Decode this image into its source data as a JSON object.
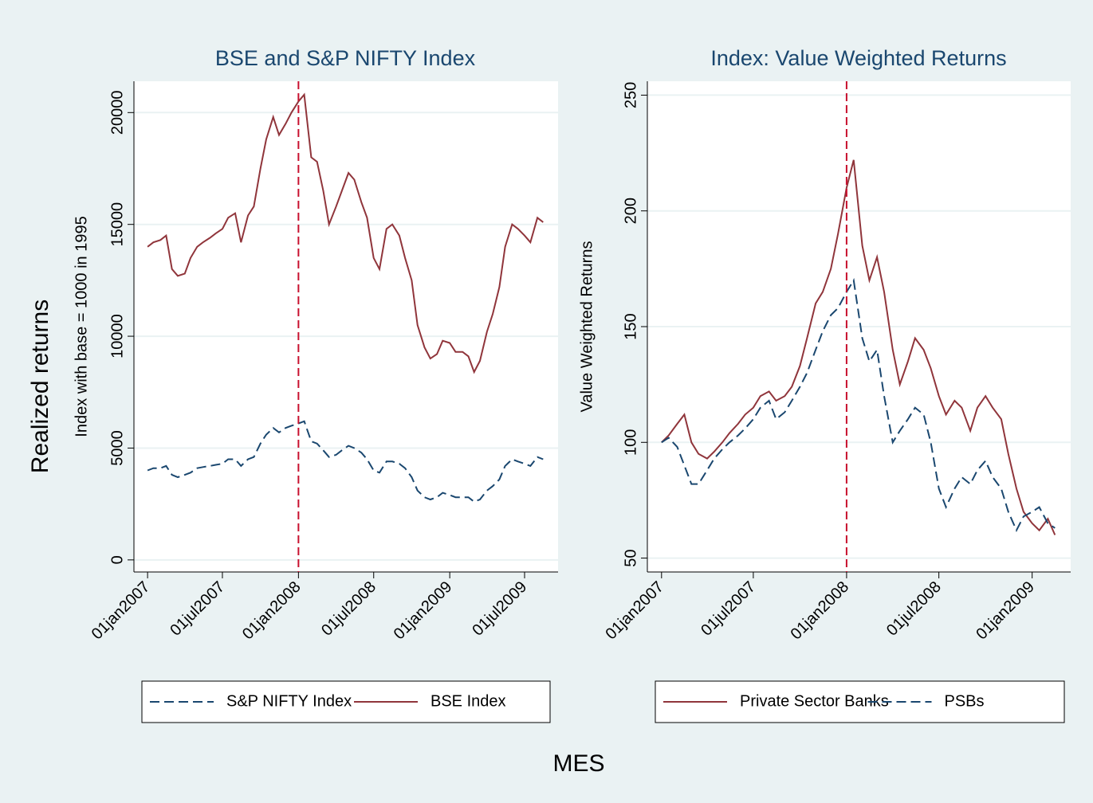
{
  "ytitle": "Realized returns",
  "xtitle": "MES",
  "chart_data": [
    {
      "type": "line",
      "title": "BSE and S&P NIFTY Index",
      "ytitle": "Index with base = 1000 in 1995",
      "x": [
        "2007-01-01",
        "2007-01-15",
        "2007-02-01",
        "2007-02-15",
        "2007-03-01",
        "2007-03-15",
        "2007-04-01",
        "2007-04-15",
        "2007-05-01",
        "2007-05-15",
        "2007-06-01",
        "2007-06-15",
        "2007-07-01",
        "2007-07-15",
        "2007-08-01",
        "2007-08-15",
        "2007-09-01",
        "2007-09-15",
        "2007-10-01",
        "2007-10-15",
        "2007-11-01",
        "2007-11-15",
        "2007-12-01",
        "2007-12-15",
        "2008-01-01",
        "2008-01-15",
        "2008-02-01",
        "2008-02-15",
        "2008-03-01",
        "2008-03-15",
        "2008-04-01",
        "2008-04-15",
        "2008-05-01",
        "2008-05-15",
        "2008-06-01",
        "2008-06-15",
        "2008-07-01",
        "2008-07-15",
        "2008-08-01",
        "2008-08-15",
        "2008-09-01",
        "2008-09-15",
        "2008-10-01",
        "2008-10-15",
        "2008-11-01",
        "2008-11-15",
        "2008-12-01",
        "2008-12-15",
        "2009-01-01",
        "2009-01-15",
        "2009-02-01",
        "2009-02-15",
        "2009-03-01",
        "2009-03-15",
        "2009-04-01",
        "2009-04-15",
        "2009-05-01",
        "2009-05-15",
        "2009-06-01",
        "2009-06-15",
        "2009-07-01",
        "2009-07-15",
        "2009-08-01",
        "2009-08-15"
      ],
      "series": [
        {
          "name": "S&P NIFTY Index",
          "color": "#1a476f",
          "dash": true,
          "values": [
            4000,
            4100,
            4100,
            4200,
            3800,
            3700,
            3800,
            3900,
            4100,
            4150,
            4200,
            4250,
            4300,
            4500,
            4500,
            4200,
            4500,
            4600,
            5200,
            5600,
            5900,
            5700,
            5900,
            6000,
            6100,
            6200,
            5300,
            5200,
            4900,
            4600,
            4700,
            4900,
            5100,
            5000,
            4800,
            4500,
            4000,
            3900,
            4400,
            4400,
            4300,
            4100,
            3700,
            3100,
            2800,
            2700,
            2800,
            3000,
            2900,
            2800,
            2800,
            2800,
            2600,
            2700,
            3100,
            3300,
            3600,
            4200,
            4500,
            4400,
            4300,
            4200,
            4600,
            4500
          ]
        },
        {
          "name": "BSE Index",
          "color": "#90353b",
          "dash": false,
          "values": [
            14000,
            14200,
            14300,
            14500,
            13000,
            12700,
            12800,
            13500,
            14000,
            14200,
            14400,
            14600,
            14800,
            15300,
            15500,
            14200,
            15400,
            15800,
            17500,
            18800,
            19800,
            19000,
            19500,
            20000,
            20500,
            20800,
            18000,
            17800,
            16500,
            15000,
            15800,
            16500,
            17300,
            17000,
            16000,
            15300,
            13500,
            13000,
            14800,
            15000,
            14500,
            13500,
            12500,
            10500,
            9500,
            9000,
            9200,
            9800,
            9700,
            9300,
            9300,
            9100,
            8400,
            8900,
            10200,
            11000,
            12200,
            14000,
            15000,
            14800,
            14500,
            14200,
            15300,
            15100
          ]
        }
      ],
      "xlim": [
        "2006-11-29",
        "2009-09-20"
      ],
      "xticks": [
        {
          "value": "2007-01-01",
          "label": "01jan2007"
        },
        {
          "value": "2007-07-01",
          "label": "01jul2007"
        },
        {
          "value": "2008-01-01",
          "label": "01jan2008"
        },
        {
          "value": "2008-07-01",
          "label": "01jul2008"
        },
        {
          "value": "2009-01-01",
          "label": "01jan2009"
        },
        {
          "value": "2009-07-01",
          "label": "01jul2009"
        }
      ],
      "ylim": [
        -540,
        21400
      ],
      "yticks": [
        0,
        5000,
        10000,
        15000,
        20000
      ],
      "grid": true,
      "vline": {
        "x": "2008-01-01",
        "color": "#c8102e"
      }
    },
    {
      "type": "line",
      "title": "Index: Value Weighted Returns",
      "ytitle": "Value Weighted Returns",
      "x": [
        "2007-01-01",
        "2007-01-15",
        "2007-02-01",
        "2007-02-15",
        "2007-03-01",
        "2007-03-15",
        "2007-04-01",
        "2007-04-15",
        "2007-05-01",
        "2007-05-15",
        "2007-06-01",
        "2007-06-15",
        "2007-07-01",
        "2007-07-15",
        "2007-08-01",
        "2007-08-15",
        "2007-09-01",
        "2007-09-15",
        "2007-10-01",
        "2007-10-15",
        "2007-11-01",
        "2007-11-15",
        "2007-12-01",
        "2007-12-15",
        "2008-01-01",
        "2008-01-15",
        "2008-02-01",
        "2008-02-15",
        "2008-03-01",
        "2008-03-15",
        "2008-04-01",
        "2008-04-15",
        "2008-05-01",
        "2008-05-15",
        "2008-06-01",
        "2008-06-15",
        "2008-07-01",
        "2008-07-15",
        "2008-08-01",
        "2008-08-15",
        "2008-09-01",
        "2008-09-15",
        "2008-10-01",
        "2008-10-15",
        "2008-11-01",
        "2008-11-15",
        "2008-12-01",
        "2008-12-15",
        "2009-01-01",
        "2009-01-15",
        "2009-02-01",
        "2009-02-15"
      ],
      "series": [
        {
          "name": "Private Sector Banks",
          "color": "#90353b",
          "dash": false,
          "values": [
            100,
            103,
            108,
            112,
            100,
            95,
            93,
            96,
            100,
            104,
            108,
            112,
            115,
            120,
            122,
            118,
            120,
            124,
            133,
            145,
            160,
            165,
            175,
            190,
            210,
            222,
            185,
            170,
            180,
            165,
            140,
            125,
            135,
            145,
            140,
            132,
            120,
            112,
            118,
            115,
            105,
            115,
            120,
            115,
            110,
            95,
            80,
            70,
            65,
            62,
            67,
            60
          ]
        },
        {
          "name": "PSBs",
          "color": "#1a476f",
          "dash": true,
          "values": [
            100,
            102,
            98,
            90,
            82,
            82,
            88,
            93,
            97,
            100,
            103,
            106,
            110,
            115,
            118,
            110,
            113,
            118,
            124,
            130,
            140,
            148,
            155,
            158,
            165,
            170,
            145,
            135,
            140,
            120,
            100,
            105,
            110,
            115,
            112,
            100,
            80,
            72,
            80,
            85,
            82,
            88,
            92,
            85,
            80,
            70,
            62,
            68,
            70,
            72,
            65,
            63
          ]
        }
      ],
      "xlim": [
        "2006-12-04",
        "2009-03-18"
      ],
      "xticks": [
        {
          "value": "2007-01-01",
          "label": "01jan2007"
        },
        {
          "value": "2007-07-01",
          "label": "01jul2007"
        },
        {
          "value": "2008-01-01",
          "label": "01jan2008"
        },
        {
          "value": "2008-07-01",
          "label": "01jul2008"
        },
        {
          "value": "2009-01-01",
          "label": "01jan2009"
        }
      ],
      "ylim": [
        44,
        256
      ],
      "yticks": [
        50,
        100,
        150,
        200,
        250
      ],
      "grid": true,
      "vline": {
        "x": "2008-01-01",
        "color": "#c8102e"
      }
    }
  ]
}
